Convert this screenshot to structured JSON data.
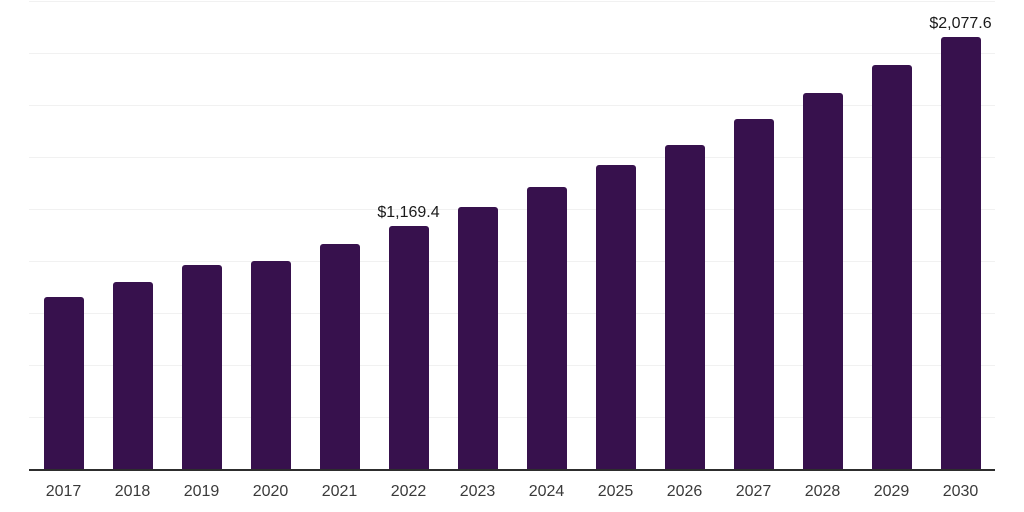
{
  "chart_data": {
    "type": "bar",
    "title": "",
    "xlabel": "",
    "ylabel": "",
    "categories": [
      "2017",
      "2018",
      "2019",
      "2020",
      "2021",
      "2022",
      "2023",
      "2024",
      "2025",
      "2026",
      "2027",
      "2028",
      "2029",
      "2030"
    ],
    "values": [
      826,
      900,
      979,
      1002,
      1082,
      1169.4,
      1258,
      1354,
      1460,
      1558,
      1681,
      1806,
      1941,
      2077.6
    ],
    "data_labels": [
      "",
      "",
      "",
      "",
      "",
      "$1,169.4",
      "",
      "",
      "",
      "",
      "",
      "",
      "",
      "$2,077.6"
    ],
    "ylim": [
      0,
      2250
    ],
    "gridline_step": 250,
    "grid": "horizontal-only",
    "legend": "none",
    "bar_color": "#37114d"
  },
  "colors": {
    "background": "#ffffff",
    "bar": "#37114d",
    "axis_line": "#2d2d2d",
    "gridline": "#f1f1f1",
    "tick_label": "#3a3a3a",
    "data_label": "#1a1a1a"
  }
}
